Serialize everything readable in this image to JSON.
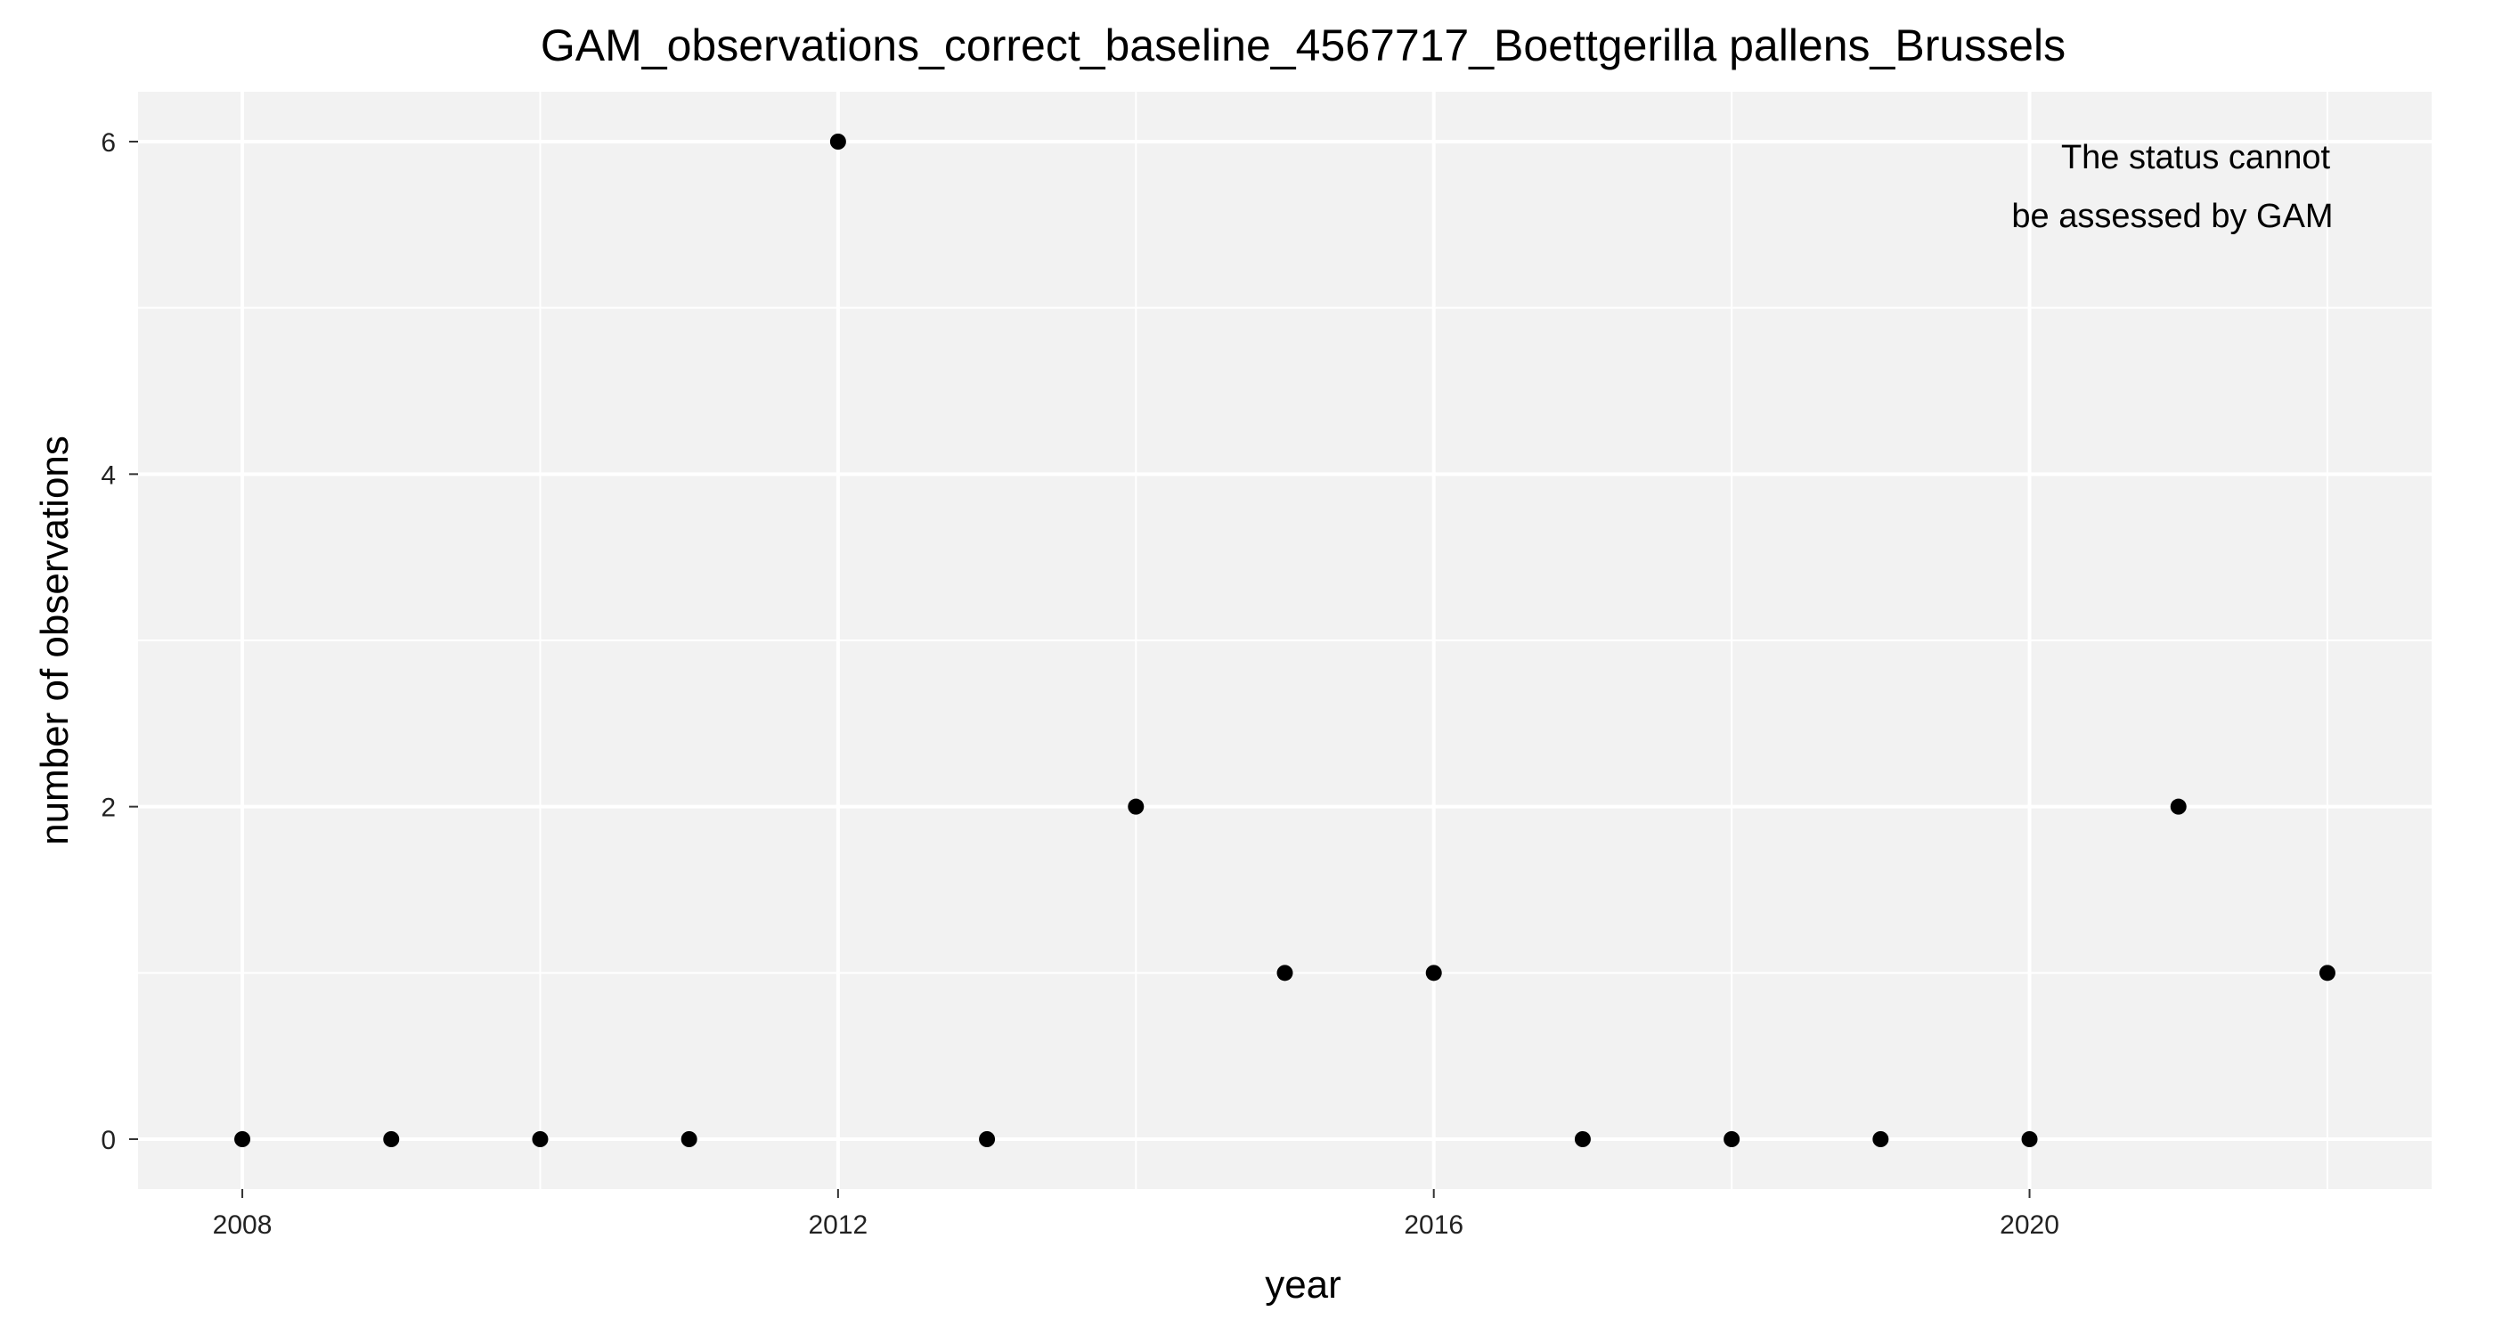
{
  "chart_data": {
    "type": "scatter",
    "title": "GAM_observations_correct_baseline_4567717_Boettgerilla pallens_Brussels",
    "xlabel": "year",
    "ylabel": "number of observations",
    "xlim": [
      2007.3,
      2022.7
    ],
    "ylim": [
      -0.3,
      6.3
    ],
    "x_ticks": [
      2008,
      2012,
      2016,
      2020
    ],
    "x_tick_labels": [
      "2008",
      "2012",
      "2016",
      "2020"
    ],
    "x_minor_ticks": [
      2010,
      2014,
      2018,
      2022
    ],
    "y_ticks": [
      0,
      2,
      4,
      6
    ],
    "y_tick_labels": [
      "0",
      "2",
      "4",
      "6"
    ],
    "y_minor_ticks": [
      1,
      3,
      5
    ],
    "grid": true,
    "legend": "none",
    "panel_background": "#f2f2f2",
    "grid_color": "#ffffff",
    "point_color": "#000000",
    "annotation": {
      "lines": [
        "The status cannot",
        "be assessed by GAM"
      ],
      "color": "#ff0000"
    },
    "points": [
      {
        "x": 2008,
        "y": 0
      },
      {
        "x": 2009,
        "y": 0
      },
      {
        "x": 2010,
        "y": 0
      },
      {
        "x": 2011,
        "y": 0
      },
      {
        "x": 2012,
        "y": 6
      },
      {
        "x": 2013,
        "y": 0
      },
      {
        "x": 2014,
        "y": 2
      },
      {
        "x": 2015,
        "y": 1
      },
      {
        "x": 2016,
        "y": 1
      },
      {
        "x": 2017,
        "y": 0
      },
      {
        "x": 2018,
        "y": 0
      },
      {
        "x": 2019,
        "y": 0
      },
      {
        "x": 2020,
        "y": 0
      },
      {
        "x": 2021,
        "y": 2
      },
      {
        "x": 2022,
        "y": 1
      }
    ]
  }
}
